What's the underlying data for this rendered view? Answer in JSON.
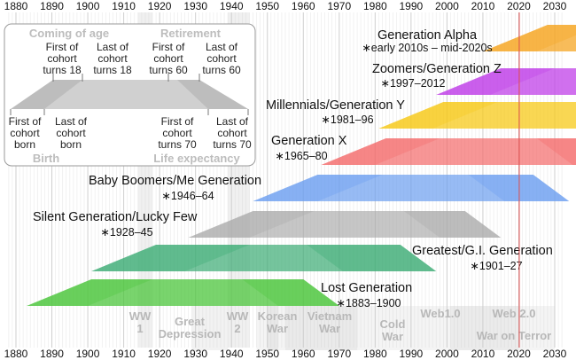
{
  "axis": {
    "start_year": 1880,
    "end_year": 2030,
    "tick_years": [
      1880,
      1890,
      1900,
      1910,
      1920,
      1930,
      1940,
      1950,
      1960,
      1970,
      1980,
      1990,
      2000,
      2010,
      2020,
      2030
    ],
    "tick_labels": [
      "1880",
      "1890",
      "1900",
      "1910",
      "1920",
      "1930",
      "1940",
      "1950",
      "1960",
      "1970",
      "1980",
      "1990",
      "2000",
      "2010",
      "2020",
      "2030"
    ],
    "current_year_marker": 2020
  },
  "colors": {
    "current_year_line": "#e05050",
    "event_band": "#cccccc",
    "event_text": "#b8b8b8",
    "legend_shape": "#c8c8c8",
    "legend_text": "#c0c0c0"
  },
  "generations": [
    {
      "name": "Generation Alpha",
      "years": "∗early 2010s – mid-2020s",
      "birth_start": 2010,
      "birth_end": 2025,
      "color": "#f5a623",
      "opacity": 0.75
    },
    {
      "name": "Zoomers/Generation Z",
      "years": "∗1997–2012",
      "birth_start": 1997,
      "birth_end": 2012,
      "color": "#c040e8",
      "opacity": 0.75
    },
    {
      "name": "Millennials/Generation Y",
      "years": "∗1981–96",
      "birth_start": 1981,
      "birth_end": 1996,
      "color": "#f7c91a",
      "opacity": 0.75
    },
    {
      "name": "Generation X",
      "years": "∗1965–80",
      "birth_start": 1965,
      "birth_end": 1980,
      "color": "#f46a6a",
      "opacity": 0.7
    },
    {
      "name": "Baby Boomers/Me Generation",
      "years": "∗1946–64",
      "birth_start": 1946,
      "birth_end": 1964,
      "color": "#6b9ef0",
      "opacity": 0.7
    },
    {
      "name": "Silent Generation/Lucky Few",
      "years": "∗1928–45",
      "birth_start": 1928,
      "birth_end": 1945,
      "color": "#a8a8a8",
      "opacity": 0.65
    },
    {
      "name": "Greatest/G.I. Generation",
      "years": "∗1901–27",
      "birth_start": 1901,
      "birth_end": 1927,
      "color": "#3aab73",
      "opacity": 0.7
    },
    {
      "name": "Lost Generation",
      "years": "∗1883–1900",
      "birth_start": 1883,
      "birth_end": 1900,
      "color": "#4cc63c",
      "opacity": 0.75
    }
  ],
  "events": [
    {
      "lines": [
        "WW",
        "1"
      ],
      "start": 1914,
      "end": 1918
    },
    {
      "lines": [
        "Great",
        "Depression"
      ],
      "start": 1929,
      "end": 1939
    },
    {
      "lines": [
        "WW",
        "2"
      ],
      "start": 1939,
      "end": 1945
    },
    {
      "lines": [
        "Korean",
        "War"
      ],
      "start": 1950,
      "end": 1953
    },
    {
      "lines": [
        "Vietnam",
        "War"
      ],
      "start": 1955,
      "end": 1975
    },
    {
      "lines": [
        "Cold",
        "War"
      ],
      "start": 1947,
      "end": 1991
    },
    {
      "lines": [
        "Web1.0"
      ],
      "start": 1991,
      "end": 2004
    },
    {
      "lines": [
        "Web 2.0"
      ],
      "start": 2004,
      "end": 2020
    },
    {
      "lines": [
        "War on Terror"
      ],
      "start": 2001,
      "end": 2030
    }
  ],
  "legend": {
    "coming_of_age": "Coming of age",
    "retirement": "Retirement",
    "first_cohort_18": [
      "First of",
      "cohort",
      "turns 18"
    ],
    "last_cohort_18": [
      "Last of",
      "cohort",
      "turns 18"
    ],
    "first_cohort_60": [
      "First of",
      "cohort",
      "turns 60"
    ],
    "last_cohort_60": [
      "Last of",
      "cohort",
      "turns 60"
    ],
    "first_cohort_born": [
      "First of",
      "cohort",
      "born"
    ],
    "last_cohort_born": [
      "Last of",
      "cohort",
      "born"
    ],
    "first_cohort_70": [
      "First of",
      "cohort",
      "turns 70"
    ],
    "last_cohort_70": [
      "Last of",
      "cohort",
      "turns 70"
    ],
    "birth": "Birth",
    "life_expectancy": "Life expectancy"
  }
}
